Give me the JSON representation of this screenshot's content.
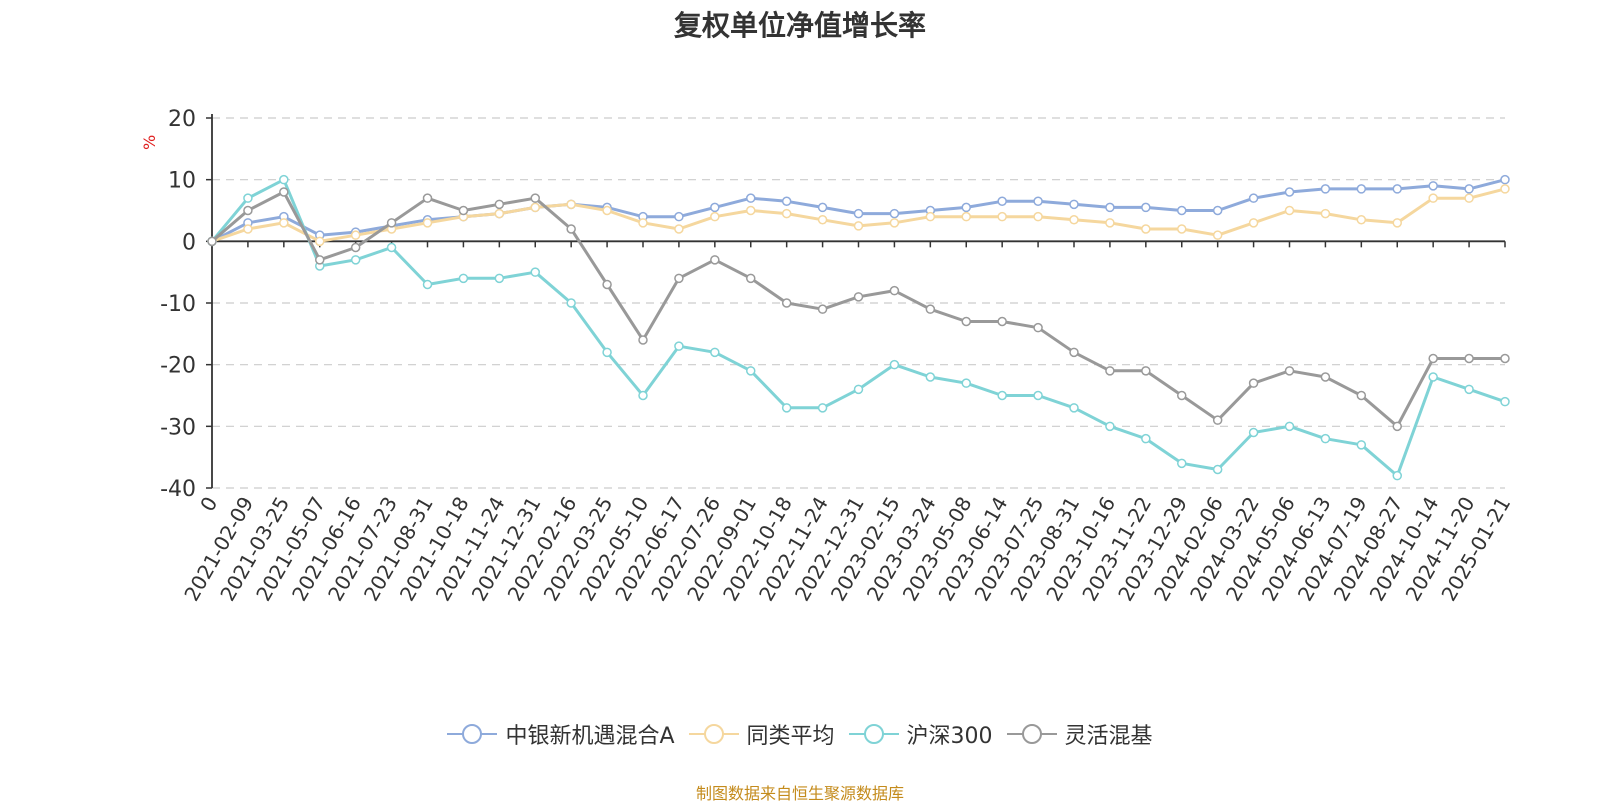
{
  "colors": {
    "fund": "#8eaadb",
    "peer": "#f5d79e",
    "index": "#7fd3d6",
    "category": "#999999",
    "footer": "#c48b1c",
    "unit": "#e02020"
  },
  "chart_data": {
    "type": "line",
    "title": "复权单位净值增长率",
    "unit_label": "%",
    "ylim": [
      -40,
      20
    ],
    "yticks": [
      -40,
      -30,
      -20,
      -10,
      0,
      10,
      20
    ],
    "grid": true,
    "legend_position": "bottom",
    "source_note": "制图数据来自恒生聚源数据库",
    "x_tick_labels": [
      "0",
      "2021-02-09",
      "2021-03-25",
      "2021-05-07",
      "2021-06-16",
      "2021-07-23",
      "2021-08-31",
      "2021-10-18",
      "2021-11-24",
      "2021-12-31",
      "2022-02-16",
      "2022-03-25",
      "2022-05-10",
      "2022-06-17",
      "2022-07-26",
      "2022-09-01",
      "2022-10-18",
      "2022-11-24",
      "2022-12-31",
      "2023-02-15",
      "2023-03-24",
      "2023-05-08",
      "2023-06-14",
      "2023-07-25",
      "2023-08-31",
      "2023-10-16",
      "2023-11-22",
      "2023-12-29",
      "2024-02-06",
      "2024-03-22",
      "2024-05-06",
      "2024-06-13",
      "2024-07-19",
      "2024-08-27",
      "2024-10-14",
      "2024-11-20",
      "2025-01-21"
    ],
    "series": [
      {
        "name": "中银新机遇混合A",
        "color_key": "fund",
        "values": [
          0,
          3,
          4,
          1,
          1.5,
          2.5,
          3.5,
          4,
          4.5,
          5.5,
          6,
          5.5,
          4,
          4,
          5.5,
          7,
          6.5,
          5.5,
          4.5,
          4.5,
          5,
          5.5,
          6.5,
          6.5,
          6,
          5.5,
          5.5,
          5,
          5,
          7,
          8,
          8.5,
          8.5,
          8.5,
          9,
          8.5,
          10
        ]
      },
      {
        "name": "同类平均",
        "color_key": "peer",
        "values": [
          0,
          2,
          3,
          0,
          1,
          2,
          3,
          4,
          4.5,
          5.5,
          6,
          5,
          3,
          2,
          4,
          5,
          4.5,
          3.5,
          2.5,
          3,
          4,
          4,
          4,
          4,
          3.5,
          3,
          2,
          2,
          1,
          3,
          5,
          4.5,
          3.5,
          3,
          7,
          7,
          8.5
        ]
      },
      {
        "name": "沪深300",
        "color_key": "index",
        "values": [
          0,
          7,
          10,
          -4,
          -3,
          -1,
          -7,
          -6,
          -6,
          -5,
          -10,
          -18,
          -25,
          -17,
          -18,
          -21,
          -27,
          -27,
          -24,
          -20,
          -22,
          -23,
          -25,
          -25,
          -27,
          -30,
          -32,
          -36,
          -37,
          -31,
          -30,
          -32,
          -33,
          -38,
          -22,
          -24,
          -26
        ]
      },
      {
        "name": "灵活混基",
        "color_key": "category",
        "values": [
          0,
          5,
          8,
          -3,
          -1,
          3,
          7,
          5,
          6,
          7,
          2,
          -7,
          -16,
          -6,
          -3,
          -6,
          -10,
          -11,
          -9,
          -8,
          -11,
          -13,
          -13,
          -14,
          -18,
          -21,
          -21,
          -25,
          -29,
          -23,
          -21,
          -22,
          -25,
          -30,
          -19,
          -19,
          -19
        ]
      }
    ]
  }
}
